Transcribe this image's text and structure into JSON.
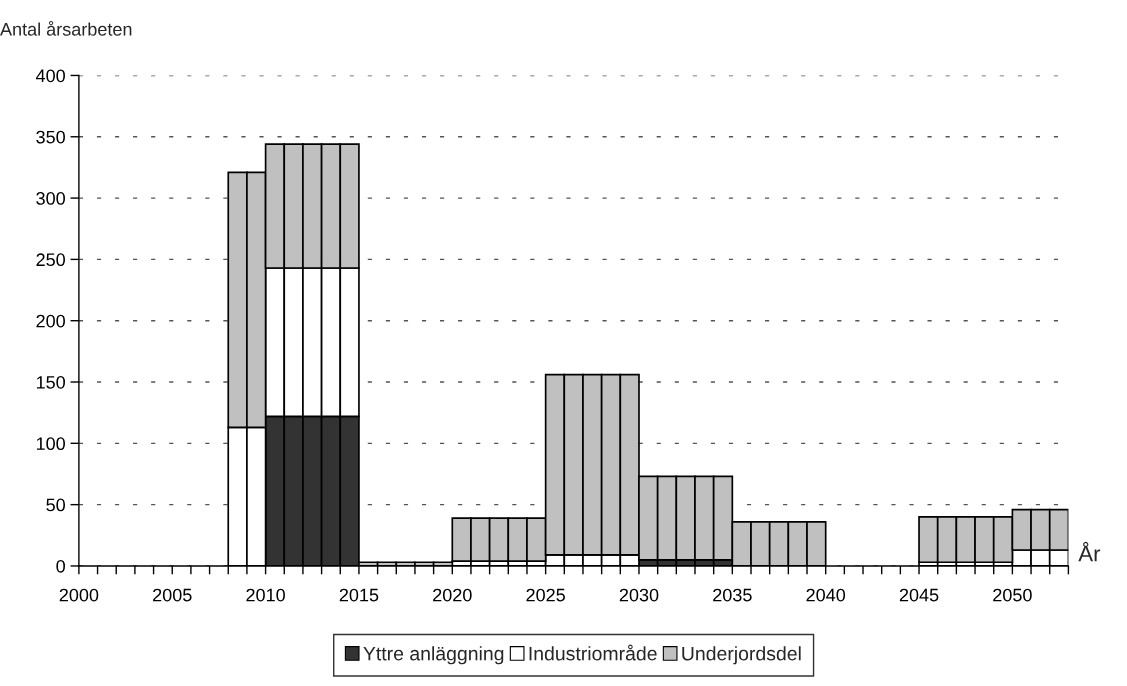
{
  "chart_data": {
    "type": "bar",
    "stacked": true,
    "ylabel": "Antal årsarbeten",
    "xlabel": "År",
    "x": [
      2008.5,
      2009.5,
      2010.5,
      2011.5,
      2012.5,
      2013.5,
      2014.5,
      2015.5,
      2016.5,
      2017.5,
      2018.5,
      2019.5,
      2020.5,
      2021.5,
      2022.5,
      2023.5,
      2024.5,
      2025.5,
      2026.5,
      2027.5,
      2028.5,
      2029.5,
      2030.5,
      2031.5,
      2032.5,
      2033.5,
      2034.5,
      2035.5,
      2036.5,
      2037.5,
      2038.5,
      2039.5,
      2045.5,
      2046.5,
      2047.5,
      2048.5,
      2049.5,
      2050.5,
      2051.5,
      2052.5
    ],
    "series": [
      {
        "name": "Yttre anläggning",
        "color": "#333333",
        "values": [
          null,
          null,
          122,
          122,
          122,
          122,
          122,
          null,
          null,
          null,
          null,
          null,
          null,
          null,
          null,
          null,
          null,
          null,
          null,
          null,
          null,
          null,
          5,
          5,
          5,
          5,
          5,
          null,
          null,
          null,
          null,
          null,
          null,
          null,
          null,
          null,
          null,
          null,
          null,
          null
        ]
      },
      {
        "name": "Industriområde",
        "color": "#ffffff",
        "values": [
          113,
          113,
          121,
          121,
          121,
          121,
          121,
          null,
          null,
          null,
          null,
          null,
          4,
          4,
          4,
          4,
          4,
          9,
          9,
          9,
          9,
          9,
          null,
          null,
          null,
          null,
          null,
          null,
          null,
          null,
          null,
          null,
          3,
          3,
          3,
          3,
          3,
          13,
          13,
          13
        ]
      },
      {
        "name": "Underjordsdel",
        "color": "#c0c0c0",
        "values": [
          208,
          208,
          101,
          101,
          101,
          101,
          101,
          3,
          3,
          3,
          3,
          3,
          35,
          35,
          35,
          35,
          35,
          147,
          147,
          147,
          147,
          147,
          68,
          68,
          68,
          68,
          68,
          36,
          36,
          36,
          36,
          36,
          37,
          37,
          37,
          37,
          37,
          33,
          33,
          33
        ]
      }
    ],
    "xlim": [
      2000,
      2053
    ],
    "xticks": [
      2000,
      {
        "value": 2001,
        "label": null
      },
      {
        "value": 2002,
        "label": null
      },
      {
        "value": 2003,
        "label": null
      },
      {
        "value": 2004,
        "label": null
      },
      2005,
      {
        "value": 2006,
        "label": null
      },
      {
        "value": 2007,
        "label": null
      },
      {
        "value": 2008,
        "label": null
      },
      {
        "value": 2009,
        "label": null
      },
      2010,
      {
        "value": 2011,
        "label": null
      },
      {
        "value": 2012,
        "label": null
      },
      {
        "value": 2013,
        "label": null
      },
      {
        "value": 2014,
        "label": null
      },
      2015,
      {
        "value": 2016,
        "label": null
      },
      {
        "value": 2017,
        "label": null
      },
      {
        "value": 2018,
        "label": null
      },
      {
        "value": 2019,
        "label": null
      },
      2020,
      {
        "value": 2021,
        "label": null
      },
      {
        "value": 2022,
        "label": null
      },
      {
        "value": 2023,
        "label": null
      },
      {
        "value": 2024,
        "label": null
      },
      2025,
      {
        "value": 2026,
        "label": null
      },
      {
        "value": 2027,
        "label": null
      },
      {
        "value": 2028,
        "label": null
      },
      {
        "value": 2029,
        "label": null
      },
      2030,
      {
        "value": 2031,
        "label": null
      },
      {
        "value": 2032,
        "label": null
      },
      {
        "value": 2033,
        "label": null
      },
      {
        "value": 2034,
        "label": null
      },
      2035,
      {
        "value": 2036,
        "label": null
      },
      {
        "value": 2037,
        "label": null
      },
      {
        "value": 2038,
        "label": null
      },
      {
        "value": 2039,
        "label": null
      },
      2040,
      {
        "value": 2041,
        "label": null
      },
      {
        "value": 2042,
        "label": null
      },
      {
        "value": 2043,
        "label": null
      },
      {
        "value": 2044,
        "label": null
      },
      2045,
      {
        "value": 2046,
        "label": null
      },
      {
        "value": 2047,
        "label": null
      },
      {
        "value": 2048,
        "label": null
      },
      {
        "value": 2049,
        "label": null
      },
      2050,
      {
        "value": 2051,
        "label": null
      },
      {
        "value": 2052,
        "label": null
      },
      {
        "value": 2053,
        "label": null
      }
    ],
    "ylim": [
      0,
      400
    ],
    "yticks": [
      0,
      50,
      100,
      150,
      200,
      250,
      300,
      350,
      400
    ],
    "grid": "y",
    "legend": "bottom"
  }
}
